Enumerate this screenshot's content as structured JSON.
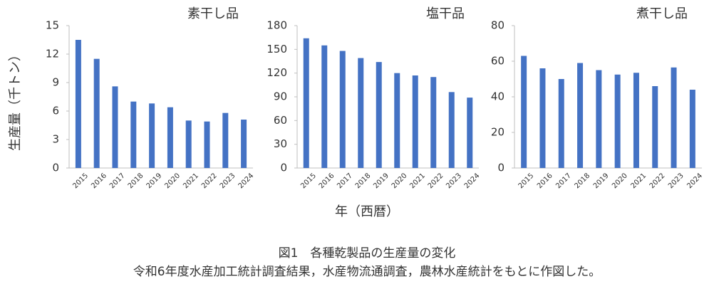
{
  "figure": {
    "y_label": "生産量（千トン）",
    "x_label": "年（西暦）",
    "caption": "図1　各種乾製品の生産量の変化",
    "note": "令和6年度水産加工統計調査結果，水産物流通調査，農林水産統計をもとに作図した。"
  },
  "chart_data": [
    {
      "type": "bar",
      "title": "素干し品",
      "color": "#4472c4",
      "categories": [
        "2015",
        "2016",
        "2017",
        "2018",
        "2019",
        "2020",
        "2021",
        "2022",
        "2023",
        "2024"
      ],
      "values": [
        13.5,
        11.5,
        8.6,
        7.0,
        6.8,
        6.4,
        5.0,
        4.9,
        5.8,
        5.1
      ],
      "ylim": [
        0,
        15
      ],
      "yticks": [
        0,
        3,
        6,
        9,
        12,
        15
      ],
      "grid": false
    },
    {
      "type": "bar",
      "title": "塩干品",
      "color": "#4472c4",
      "categories": [
        "2015",
        "2016",
        "2017",
        "2018",
        "2019",
        "2020",
        "2021",
        "2022",
        "2023",
        "2024"
      ],
      "values": [
        164,
        155,
        148,
        139,
        134,
        120,
        117,
        115,
        96,
        89
      ],
      "ylim": [
        0,
        180
      ],
      "yticks": [
        0,
        30,
        60,
        90,
        120,
        150,
        180
      ],
      "grid": false
    },
    {
      "type": "bar",
      "title": "煮干し品",
      "color": "#4472c4",
      "categories": [
        "2015",
        "2016",
        "2017",
        "2018",
        "2019",
        "2020",
        "2021",
        "2022",
        "2023",
        "2024"
      ],
      "values": [
        63,
        56,
        50,
        59,
        55,
        52.5,
        53.5,
        46,
        56.5,
        44
      ],
      "ylim": [
        0,
        80
      ],
      "yticks": [
        0,
        20,
        40,
        60,
        80
      ],
      "grid": false
    }
  ]
}
